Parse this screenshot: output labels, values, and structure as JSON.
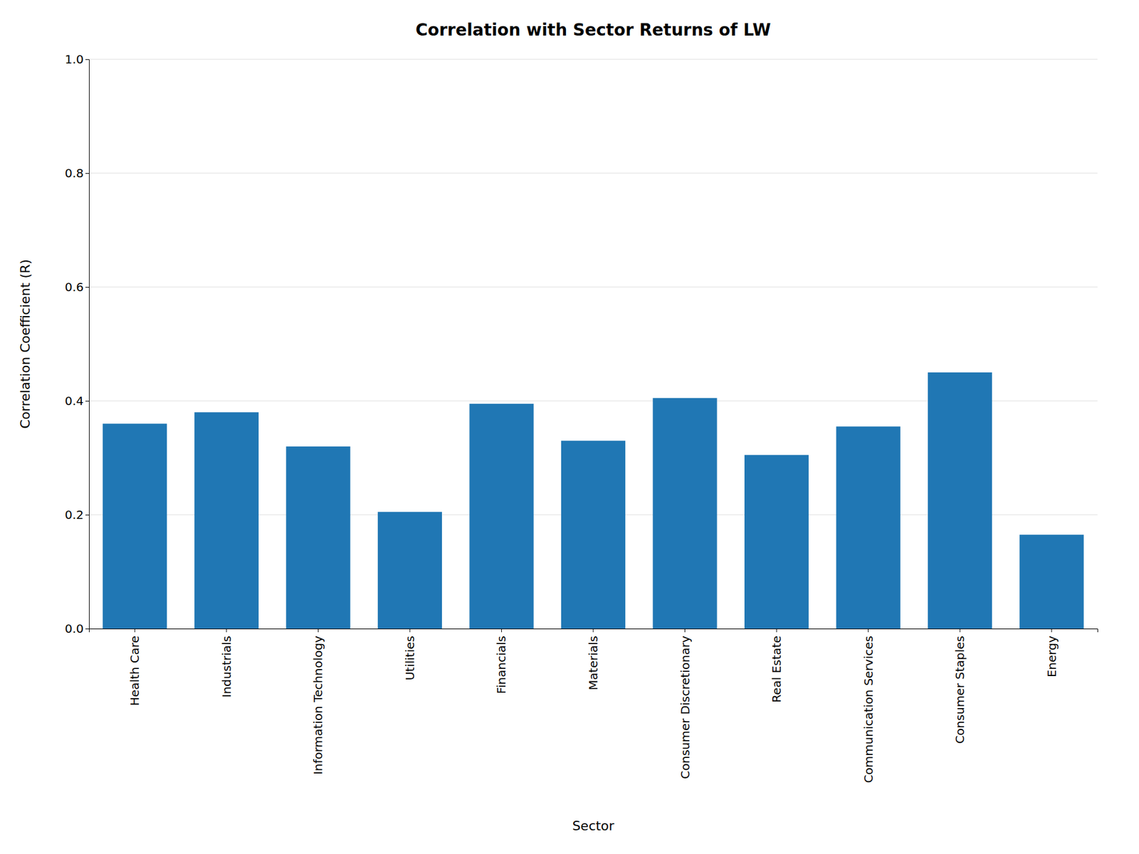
{
  "chart_data": {
    "type": "bar",
    "title": "Correlation with Sector Returns of LW",
    "xlabel": "Sector",
    "ylabel": "Correlation Coefficient (R)",
    "categories": [
      "Health Care",
      "Industrials",
      "Information Technology",
      "Utilities",
      "Financials",
      "Materials",
      "Consumer Discretionary",
      "Real Estate",
      "Communication Services",
      "Consumer Staples",
      "Energy"
    ],
    "values": [
      0.36,
      0.38,
      0.32,
      0.205,
      0.395,
      0.33,
      0.405,
      0.305,
      0.355,
      0.45,
      0.165
    ],
    "color": "#2077b4",
    "ylim": [
      0.0,
      1.0
    ],
    "yticks": [
      {
        "value": 0.0,
        "label": "0.0"
      },
      0.2,
      0.4,
      0.6,
      0.8,
      {
        "value": 1.0,
        "label": "1.0"
      }
    ],
    "grid": true
  }
}
